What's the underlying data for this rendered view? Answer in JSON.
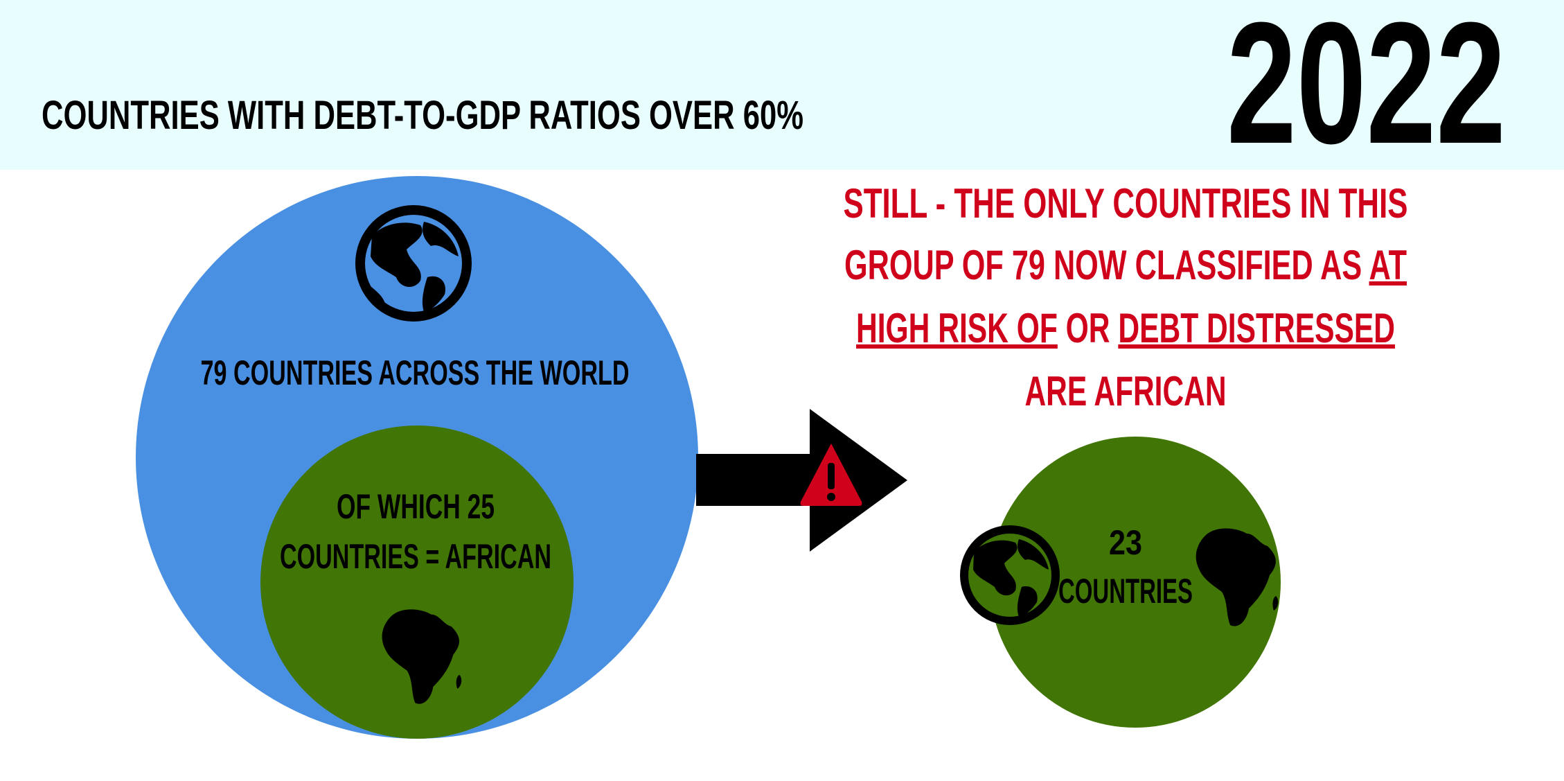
{
  "header": {
    "title": "COUNTRIES WITH DEBT-TO-GDP RATIOS OVER 60%",
    "year": "2022"
  },
  "world_group": {
    "label": "79 COUNTRIES ACROSS THE WORLD",
    "african_lines": [
      "OF WHICH 25",
      "COUNTRIES = AFRICAN"
    ]
  },
  "callout": {
    "lines": [
      [
        {
          "text": "STILL - THE ONLY COUNTRIES IN THIS",
          "underline": false
        }
      ],
      [
        {
          "text": "GROUP OF 79 NOW CLASSIFIED AS ",
          "underline": false
        },
        {
          "text": "AT",
          "underline": true
        }
      ],
      [
        {
          "text": "HIGH RISK OF",
          "underline": true
        },
        {
          "text": " OR ",
          "underline": false
        },
        {
          "text": "DEBT DISTRESSED",
          "underline": true
        }
      ],
      [
        {
          "text": "ARE AFRICAN",
          "underline": false
        }
      ]
    ]
  },
  "result": {
    "lines": [
      "23",
      "COUNTRIES"
    ]
  }
}
